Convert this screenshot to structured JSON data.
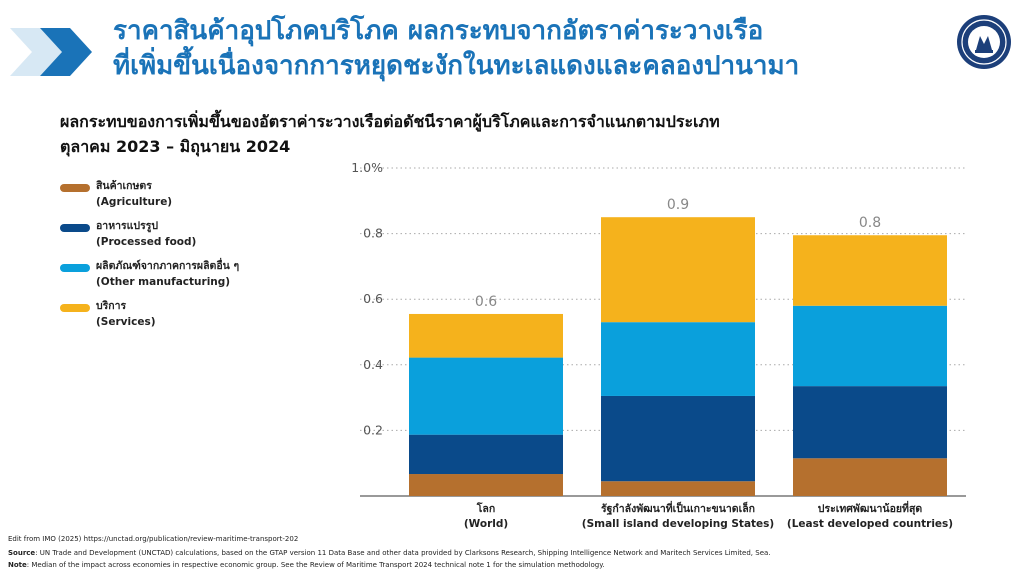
{
  "header": {
    "title_line1": "ราคาสินค้าอุปโภคบริโภค ผลกระทบจากอัตราค่าระวางเรือ",
    "title_line2": "ที่เพิ่มขึ้นเนื่องจากการหยุดชะงักในทะเลแดงและคลองปานามา",
    "brand_color": "#1a73b8"
  },
  "subtitle": {
    "line1": "ผลกระทบของการเพิ่มขึ้นของอัตราค่าระวางเรือต่อดัชนีราคาผู้บริโภคและการจำแนกตามประเภท",
    "line2": "ตุลาคม 2023 – มิถุนายน 2024"
  },
  "legend": [
    {
      "th": "สินค้าเกษตร",
      "en": "(Agriculture)",
      "color": "#b5702e"
    },
    {
      "th": "อาหารแปรรูป",
      "en": "(Processed food)",
      "color": "#0a4a8a"
    },
    {
      "th": "ผลิตภัณฑ์จากภาคการผลิตอื่น ๆ",
      "en": "(Other manufacturing)",
      "color": "#0aa0dc"
    },
    {
      "th": "บริการ",
      "en": "(Services)",
      "color": "#f5b21c"
    }
  ],
  "chart_data": {
    "type": "stacked-bar",
    "ylim": [
      0,
      1.0
    ],
    "ytick_labels": [
      "0.2",
      "0.4",
      "0.6",
      "0.8",
      "1.0%"
    ],
    "yticks": [
      0.2,
      0.4,
      0.6,
      0.8,
      1.0
    ],
    "categories": [
      {
        "th": "โลก",
        "en": "(World)"
      },
      {
        "th": "รัฐกำลังพัฒนาที่เป็นเกาะขนาดเล็ก",
        "en": "(Small island developing States)"
      },
      {
        "th": "ประเทศพัฒนาน้อยที่สุด",
        "en": "(Least developed countries)"
      }
    ],
    "series": [
      {
        "name": "Agriculture",
        "values": [
          0.067,
          0.045,
          0.115
        ]
      },
      {
        "name": "Processed food",
        "values": [
          0.12,
          0.26,
          0.22
        ]
      },
      {
        "name": "Other manufacturing",
        "values": [
          0.235,
          0.225,
          0.245
        ]
      },
      {
        "name": "Services",
        "values": [
          0.133,
          0.32,
          0.215
        ]
      }
    ],
    "totals_labels": [
      "0.6",
      "0.9",
      "0.8"
    ]
  },
  "footer": {
    "edit_from": "Edit from  IMO (2025) https://unctad.org/publication/review-maritime-transport-202",
    "source_label": "Source",
    "source_text": ": UN Trade and Development (UNCTAD) calculations, based on the GTAP version 11 Data Base and other data provided by Clarksons Research, Shipping Intelligence Network and Maritech Services Limited, Sea.",
    "note_label": "Note",
    "note_text": ": Median of the impact across economies in respective economic group. See the Review of Maritime Transport 2024 technical note 1 for the simulation methodology."
  }
}
